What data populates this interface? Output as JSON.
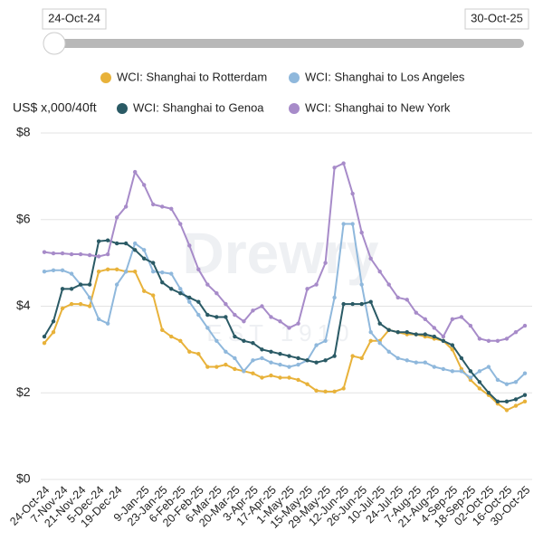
{
  "slider": {
    "start_label": "24-Oct-24",
    "end_label": "30-Oct-25"
  },
  "chart_data": {
    "type": "line",
    "y_axis_label": "US$ x,000/40ft",
    "watermark": {
      "title": "Drewry",
      "subtitle": "EST 1910"
    },
    "categories": [
      "24-Oct-24",
      null,
      "7-Nov-24",
      null,
      "21-Nov-24",
      null,
      "5-Dec-24",
      null,
      "19-Dec-24",
      null,
      null,
      "9-Jan-25",
      null,
      "23-Jan-25",
      null,
      "6-Feb-25",
      null,
      "20-Feb-25",
      null,
      "6-Mar-25",
      null,
      "20-Mar-25",
      null,
      "3-Apr-25",
      null,
      "17-Apr-25",
      null,
      "1-May-25",
      null,
      "15-May-25",
      null,
      "29-May-25",
      null,
      "12-Jun-25",
      null,
      "26-Jun-25",
      null,
      "10-Jul-25",
      null,
      "24-Jul-25",
      null,
      "7-Aug-25",
      null,
      "21-Aug-25",
      null,
      "4-Sep-25",
      null,
      "18-Sep-25",
      null,
      "02-Oct-25",
      null,
      "16-Oct-25",
      null,
      "30-Oct-25"
    ],
    "series": [
      {
        "name": "WCI: Shanghai to Rotterdam",
        "color": "#e8b23a",
        "values": [
          3.15,
          3.4,
          3.95,
          4.05,
          4.05,
          4.0,
          4.8,
          4.85,
          4.85,
          4.8,
          4.8,
          4.35,
          4.25,
          3.45,
          3.3,
          3.2,
          2.95,
          2.9,
          2.6,
          2.6,
          2.65,
          2.55,
          2.5,
          2.45,
          2.35,
          2.4,
          2.35,
          2.35,
          2.3,
          2.2,
          2.05,
          2.03,
          2.03,
          2.1,
          2.85,
          2.8,
          3.2,
          3.2,
          3.45,
          3.4,
          3.35,
          3.35,
          3.3,
          3.25,
          3.2,
          3.0,
          2.55,
          2.3,
          2.1,
          1.95,
          1.75,
          1.6,
          1.7,
          1.8
        ]
      },
      {
        "name": "WCI: Shanghai to Los Angeles",
        "color": "#8fb8dc",
        "values": [
          4.8,
          4.83,
          4.83,
          4.75,
          4.5,
          4.2,
          3.7,
          3.6,
          4.5,
          4.8,
          5.45,
          5.3,
          4.8,
          4.78,
          4.75,
          4.4,
          4.1,
          3.8,
          3.5,
          3.2,
          2.95,
          2.8,
          2.5,
          2.75,
          2.8,
          2.7,
          2.65,
          2.6,
          2.65,
          2.75,
          3.1,
          3.2,
          4.2,
          5.9,
          5.9,
          4.5,
          3.4,
          3.15,
          2.95,
          2.8,
          2.75,
          2.7,
          2.7,
          2.6,
          2.55,
          2.5,
          2.5,
          2.35,
          2.5,
          2.6,
          2.3,
          2.2,
          2.25,
          2.45
        ]
      },
      {
        "name": "WCI: Shanghai to Genoa",
        "color": "#2a5a65",
        "values": [
          3.3,
          3.65,
          4.4,
          4.4,
          4.5,
          4.5,
          5.5,
          5.52,
          5.45,
          5.45,
          5.3,
          5.1,
          5.0,
          4.55,
          4.4,
          4.3,
          4.2,
          4.1,
          3.8,
          3.75,
          3.75,
          3.3,
          3.2,
          3.15,
          3.0,
          2.95,
          2.9,
          2.85,
          2.8,
          2.75,
          2.7,
          2.75,
          2.85,
          4.05,
          4.05,
          4.05,
          4.1,
          3.6,
          3.45,
          3.4,
          3.4,
          3.35,
          3.35,
          3.3,
          3.2,
          3.1,
          2.8,
          2.5,
          2.25,
          2.0,
          1.8,
          1.8,
          1.85,
          1.95
        ]
      },
      {
        "name": "WCI: Shanghai to New York",
        "color": "#a78bc9",
        "values": [
          5.25,
          5.22,
          5.22,
          5.2,
          5.2,
          5.18,
          5.15,
          5.2,
          6.05,
          6.3,
          7.1,
          6.8,
          6.35,
          6.3,
          6.25,
          5.9,
          5.4,
          4.85,
          4.5,
          4.3,
          4.05,
          3.8,
          3.65,
          3.9,
          4.0,
          3.75,
          3.65,
          3.5,
          3.6,
          4.4,
          4.5,
          5.0,
          7.2,
          7.3,
          6.6,
          5.7,
          5.1,
          4.8,
          4.5,
          4.2,
          4.15,
          3.85,
          3.7,
          3.5,
          3.3,
          3.7,
          3.75,
          3.55,
          3.25,
          3.2,
          3.2,
          3.25,
          3.4,
          3.55
        ]
      }
    ],
    "ylim": [
      0,
      8
    ],
    "yticks": [
      {
        "value": 0,
        "label": "$0"
      },
      {
        "value": 2,
        "label": "$2"
      },
      {
        "value": 4,
        "label": "$4"
      },
      {
        "value": 6,
        "label": "$6"
      },
      {
        "value": 8,
        "label": "$8"
      }
    ],
    "grid": true
  }
}
